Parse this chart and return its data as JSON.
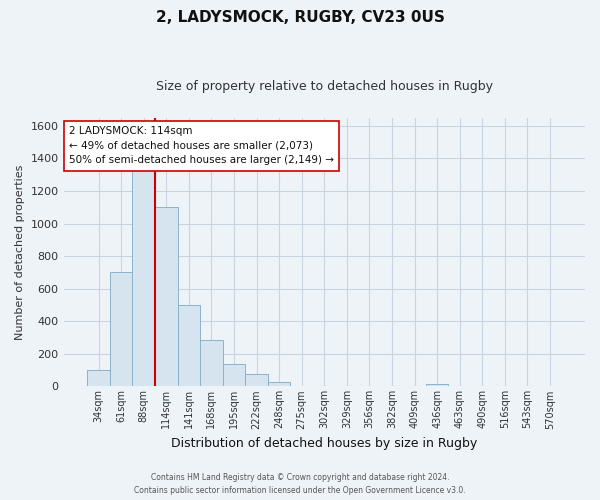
{
  "title": "2, LADYSMOCK, RUGBY, CV23 0US",
  "subtitle": "Size of property relative to detached houses in Rugby",
  "xlabel": "Distribution of detached houses by size in Rugby",
  "ylabel": "Number of detached properties",
  "footer_line1": "Contains HM Land Registry data © Crown copyright and database right 2024.",
  "footer_line2": "Contains public sector information licensed under the Open Government Licence v3.0.",
  "bar_labels": [
    "34sqm",
    "61sqm",
    "88sqm",
    "114sqm",
    "141sqm",
    "168sqm",
    "195sqm",
    "222sqm",
    "248sqm",
    "275sqm",
    "302sqm",
    "329sqm",
    "356sqm",
    "382sqm",
    "409sqm",
    "436sqm",
    "463sqm",
    "490sqm",
    "516sqm",
    "543sqm",
    "570sqm"
  ],
  "bar_values": [
    100,
    700,
    1340,
    1100,
    500,
    285,
    140,
    75,
    30,
    0,
    0,
    0,
    0,
    0,
    0,
    15,
    0,
    0,
    0,
    0,
    0
  ],
  "bar_color": "#d6e4f0",
  "bar_edge_color": "#8ab4cc",
  "highlight_bar_index": 3,
  "highlight_line_color": "#cc0000",
  "annotation_title": "2 LADYSMOCK: 114sqm",
  "annotation_line1": "← 49% of detached houses are smaller (2,073)",
  "annotation_line2": "50% of semi-detached houses are larger (2,149) →",
  "annotation_box_facecolor": "#ffffff",
  "annotation_box_edgecolor": "#cc0000",
  "bg_color": "#eef3f8",
  "plot_bg_color": "#eef3f8",
  "grid_color": "#c8d4e0",
  "ylim": [
    0,
    1650
  ],
  "yticks": [
    0,
    200,
    400,
    600,
    800,
    1000,
    1200,
    1400,
    1600
  ],
  "figsize": [
    6.0,
    5.0
  ],
  "dpi": 100
}
